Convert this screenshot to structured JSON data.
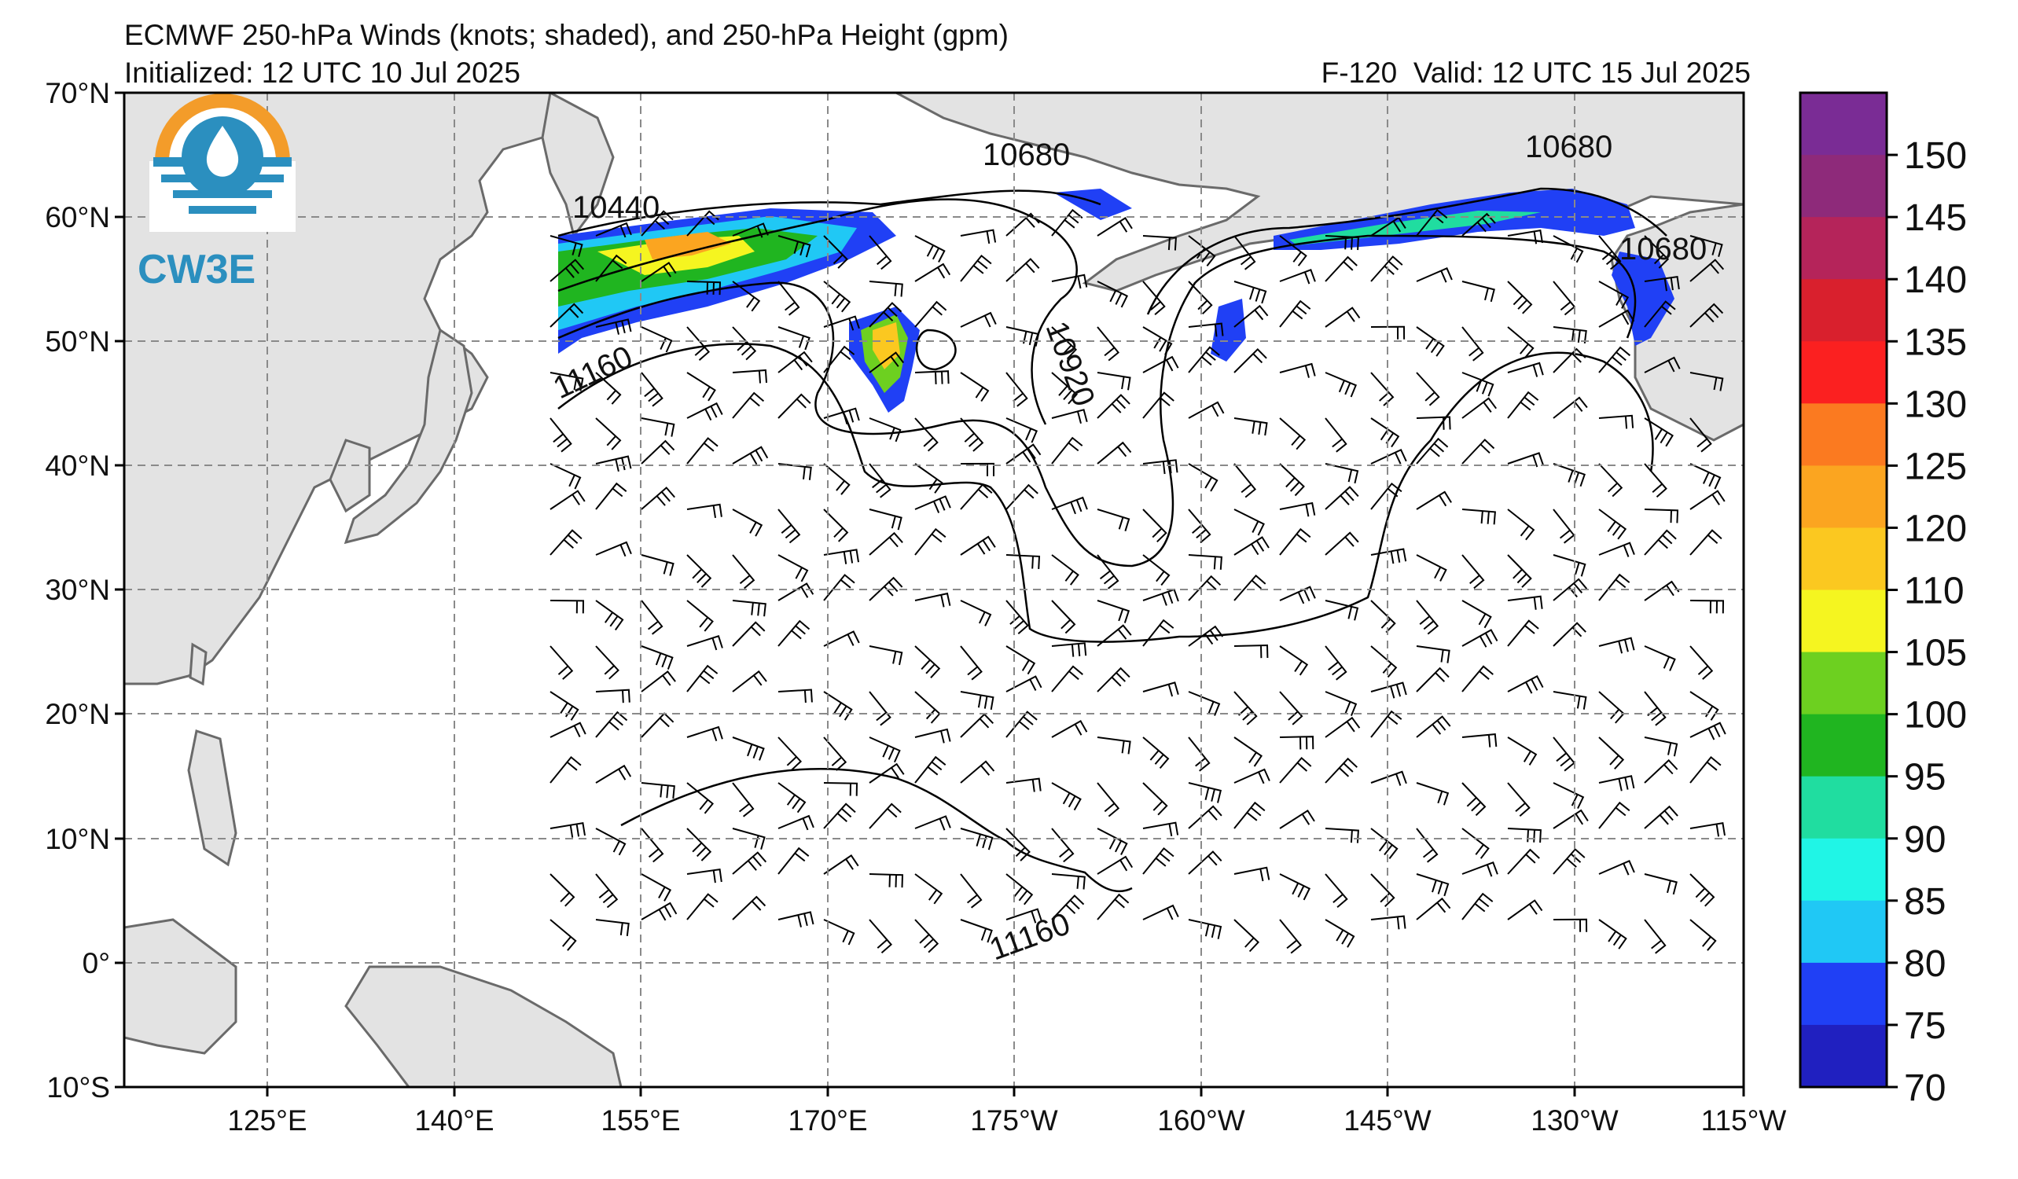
{
  "title": "ECMWF 250-hPa Winds (knots; shaded), and 250-hPa Height (gpm)",
  "init": "Initialized: 12 UTC 10 Jul 2025",
  "valid": "F-120  Valid: 12 UTC 15 Jul 2025",
  "logo_text": "CW3E",
  "lat_labels": [
    "70°N",
    "60°N",
    "50°N",
    "40°N",
    "30°N",
    "20°N",
    "10°N",
    "0°",
    "10°S"
  ],
  "lon_labels": [
    "125°E",
    "140°E",
    "155°E",
    "170°E",
    "175°W",
    "160°W",
    "145°W",
    "130°W",
    "115°W"
  ],
  "colorbar": {
    "ticks": [
      "150",
      "145",
      "140",
      "135",
      "130",
      "125",
      "120",
      "110",
      "105",
      "100",
      "95",
      "90",
      "85",
      "80",
      "75",
      "70"
    ],
    "colors": [
      "#7a2c95",
      "#8e2a7a",
      "#b5245a",
      "#d9202d",
      "#fb2020",
      "#fb7a20",
      "#fba520",
      "#fbc820",
      "#f5f520",
      "#6dd020",
      "#20b520",
      "#20dda0",
      "#20f5e6",
      "#20c8f5",
      "#2040f5",
      "#2020c0"
    ]
  },
  "height_contour_labels": [
    "10440",
    "10680",
    "10680",
    "10680",
    "10920",
    "11160",
    "11160"
  ],
  "colors": {
    "land": "#e3e3e3",
    "coast": "#6a6a6a",
    "grid": "#8a8a8a",
    "contour": "#000000",
    "logo_orange": "#f39c2a",
    "logo_blue": "#2b8fbf"
  }
}
